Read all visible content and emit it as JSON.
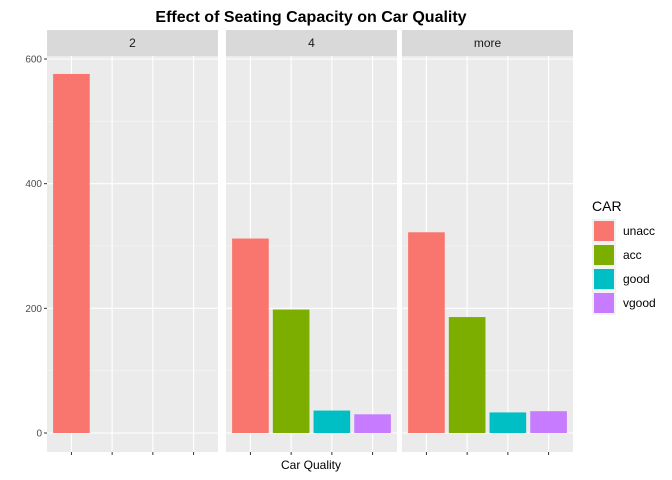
{
  "chart_data": {
    "type": "bar",
    "title": "Effect of Seating Capacity on Car Quality",
    "xlabel": "Car Quality",
    "ylabel": "",
    "ylim": [
      0,
      600
    ],
    "yticks": [
      0,
      200,
      400,
      600
    ],
    "grid": true,
    "legend_position": "right",
    "categories": [
      "unacc",
      "acc",
      "good",
      "vgood"
    ],
    "legend": {
      "title": "CAR",
      "entries": [
        {
          "label": "unacc",
          "color": "#F8766D"
        },
        {
          "label": "acc",
          "color": "#7CAE00"
        },
        {
          "label": "good",
          "color": "#00BFC4"
        },
        {
          "label": "vgood",
          "color": "#C77CFF"
        }
      ]
    },
    "facets": [
      {
        "label": "2",
        "values": [
          576,
          0,
          0,
          0
        ]
      },
      {
        "label": "4",
        "values": [
          312,
          198,
          36,
          30
        ]
      },
      {
        "label": "more",
        "values": [
          322,
          186,
          33,
          35
        ]
      }
    ]
  }
}
